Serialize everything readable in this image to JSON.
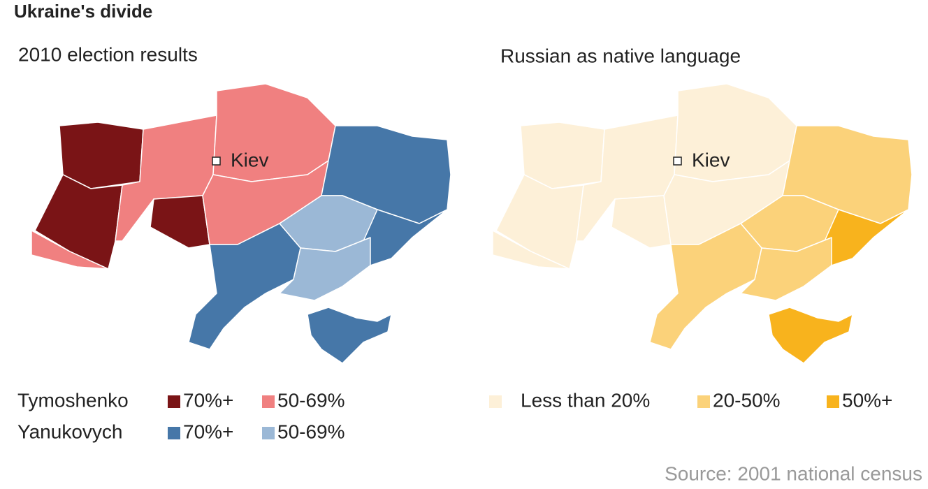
{
  "title": "Ukraine's divide",
  "maps": [
    {
      "title": "2010 election results",
      "marker": "Kiev",
      "legend": [
        {
          "name": "Tymoshenko",
          "items": [
            {
              "label": "70%+",
              "color": "#7a1416"
            },
            {
              "label": "50-69%",
              "color": "#f08080"
            }
          ]
        },
        {
          "name": "Yanukovych",
          "items": [
            {
              "label": "70%+",
              "color": "#4677a8"
            },
            {
              "label": "50-69%",
              "color": "#9bb8d6"
            }
          ]
        }
      ]
    },
    {
      "title": "Russian as native language",
      "marker": "Kiev",
      "legend": [
        {
          "items": [
            {
              "label": "Less than 20%",
              "color": "#fdf0d8"
            },
            {
              "label": "20-50%",
              "color": "#fbd27a"
            },
            {
              "label": "50%+",
              "color": "#f8b31d"
            }
          ]
        }
      ]
    }
  ],
  "source": "Source: 2001 national census"
}
